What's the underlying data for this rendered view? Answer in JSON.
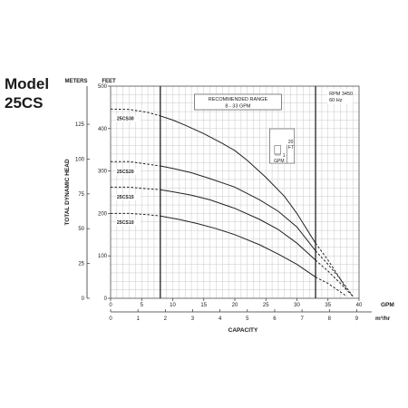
{
  "header": {
    "title_line1": "Model",
    "title_line2": "25CS"
  },
  "chart_data": {
    "type": "line",
    "x_primary": {
      "label": "GPM",
      "ticks": [
        0,
        5,
        10,
        15,
        20,
        25,
        30,
        35,
        40
      ],
      "range": [
        0,
        40
      ]
    },
    "x_secondary": {
      "label": "m³/hr",
      "ticks": [
        0,
        1,
        2,
        3,
        4,
        5,
        6,
        7,
        8,
        9
      ]
    },
    "xlabel": "CAPACITY",
    "y_primary": {
      "label": "FEET",
      "ticks": [
        0,
        100,
        200,
        300,
        400,
        500
      ],
      "range": [
        0,
        500
      ]
    },
    "y_secondary": {
      "label": "METERS",
      "ticks": [
        0,
        25,
        50,
        75,
        100,
        125
      ]
    },
    "ylabel": "TOTAL DYNAMIC HEAD",
    "recommended_range": {
      "title": "RECOMMENDED RANGE",
      "subtitle": "8 - 33 GPM",
      "x_min": 8,
      "x_max": 33
    },
    "rpm_note": {
      "line1": "RPM 3450",
      "line2": "60 Hz"
    },
    "legend_box": {
      "vertical_value": "20",
      "vertical_unit": "FT",
      "horizontal_value": "1",
      "horizontal_unit": "GPM"
    },
    "grid": true,
    "series": [
      {
        "name": "25CS30",
        "label_x": 1,
        "label_y": 420,
        "dashed": [
          [
            0,
            446
          ],
          [
            3,
            445
          ],
          [
            6,
            438
          ],
          [
            8,
            430
          ]
        ],
        "values": [
          [
            8,
            430
          ],
          [
            10,
            420
          ],
          [
            12,
            408
          ],
          [
            15,
            388
          ],
          [
            18,
            365
          ],
          [
            20,
            348
          ],
          [
            22,
            325
          ],
          [
            25,
            285
          ],
          [
            28,
            240
          ],
          [
            30,
            200
          ],
          [
            33,
            130
          ]
        ],
        "tail": [
          [
            33,
            130
          ],
          [
            35,
            90
          ],
          [
            37,
            45
          ],
          [
            38,
            20
          ]
        ]
      },
      {
        "name": "25CS20",
        "label_x": 1,
        "label_y": 295,
        "dashed": [
          [
            0,
            322
          ],
          [
            3,
            322
          ],
          [
            6,
            316
          ],
          [
            8,
            312
          ]
        ],
        "values": [
          [
            8,
            312
          ],
          [
            10,
            306
          ],
          [
            13,
            296
          ],
          [
            16,
            282
          ],
          [
            20,
            262
          ],
          [
            24,
            232
          ],
          [
            27,
            205
          ],
          [
            30,
            168
          ],
          [
            33,
            112
          ]
        ],
        "tail": [
          [
            33,
            112
          ],
          [
            35,
            80
          ],
          [
            37,
            45
          ],
          [
            39,
            5
          ]
        ]
      },
      {
        "name": "25CS15",
        "label_x": 1,
        "label_y": 235,
        "dashed": [
          [
            0,
            262
          ],
          [
            3,
            262
          ],
          [
            6,
            258
          ],
          [
            8,
            256
          ]
        ],
        "values": [
          [
            8,
            256
          ],
          [
            10,
            251
          ],
          [
            13,
            243
          ],
          [
            16,
            232
          ],
          [
            20,
            212
          ],
          [
            24,
            186
          ],
          [
            27,
            162
          ],
          [
            30,
            130
          ],
          [
            33,
            90
          ]
        ],
        "tail": [
          [
            33,
            90
          ],
          [
            35,
            64
          ],
          [
            37,
            35
          ],
          [
            39,
            5
          ]
        ]
      },
      {
        "name": "25CS10",
        "label_x": 1,
        "label_y": 175,
        "dashed": [
          [
            0,
            200
          ],
          [
            3,
            200
          ],
          [
            6,
            197
          ],
          [
            8,
            194
          ]
        ],
        "values": [
          [
            8,
            194
          ],
          [
            11,
            186
          ],
          [
            14,
            176
          ],
          [
            17,
            164
          ],
          [
            20,
            150
          ],
          [
            24,
            126
          ],
          [
            27,
            104
          ],
          [
            30,
            80
          ],
          [
            33,
            50
          ]
        ],
        "tail": [
          [
            33,
            50
          ],
          [
            35,
            35
          ],
          [
            37,
            15
          ],
          [
            38,
            5
          ]
        ]
      }
    ]
  }
}
